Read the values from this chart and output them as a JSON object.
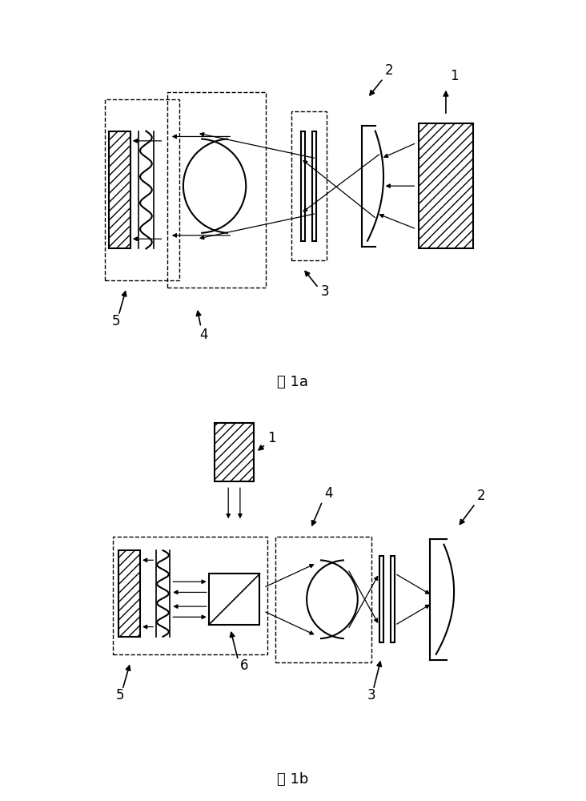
{
  "fig1a_label": "图 1a",
  "fig1b_label": "图 1b",
  "bg_color": "#ffffff",
  "line_color": "#000000"
}
